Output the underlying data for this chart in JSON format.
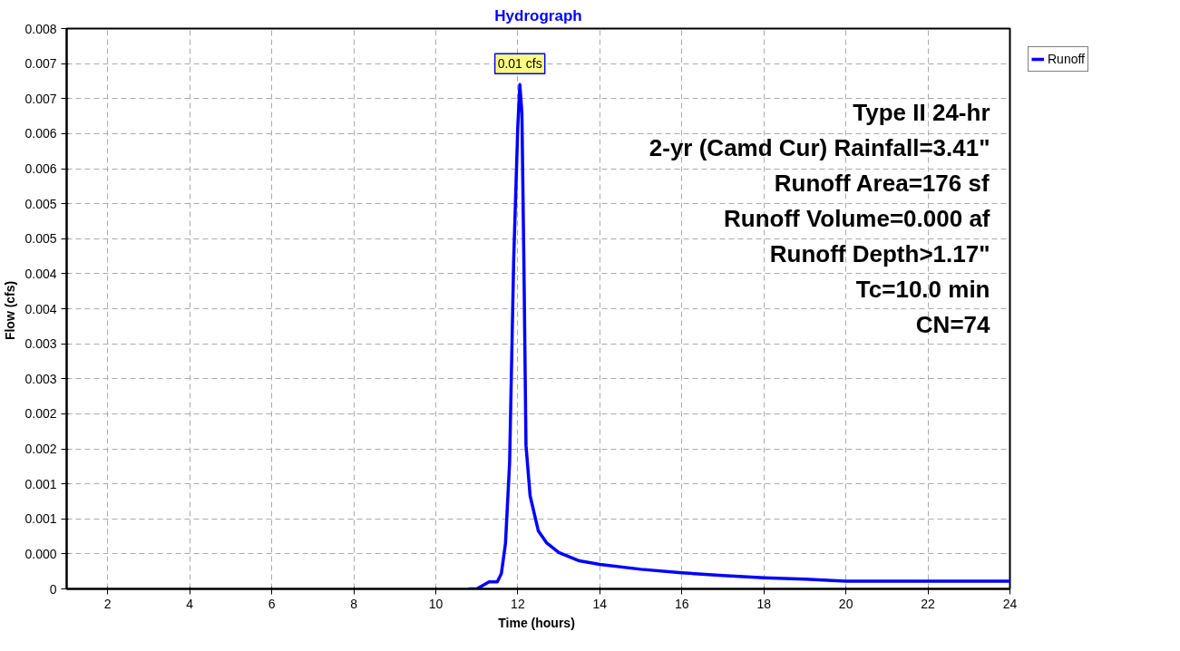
{
  "chart_data": {
    "type": "line",
    "title": "Hydrograph",
    "xlabel": "Time  (hours)",
    "ylabel": "Flow  (cfs)",
    "x": [
      10.8,
      11.0,
      11.3,
      11.5,
      11.6,
      11.7,
      11.8,
      11.9,
      12.0,
      12.05,
      12.1,
      12.15,
      12.2,
      12.3,
      12.5,
      12.7,
      13.0,
      13.5,
      14.0,
      15.0,
      16.0,
      17.0,
      18.0,
      19.0,
      20.0,
      24.0
    ],
    "series": [
      {
        "name": "Runoff",
        "color": "#0000ff",
        "values": [
          0,
          0,
          0.0001,
          0.0001,
          0.00022,
          0.00065,
          0.0018,
          0.0047,
          0.0066,
          0.0072,
          0.0068,
          0.0046,
          0.00205,
          0.00133,
          0.00083,
          0.00066,
          0.00052,
          0.0004,
          0.00035,
          0.00028,
          0.00023,
          0.00019,
          0.00016,
          0.00014,
          0.00011,
          0.00011
        ]
      }
    ],
    "xlim": [
      1,
      24
    ],
    "ylim": [
      0,
      0.008
    ],
    "xticks": [
      2,
      4,
      6,
      8,
      10,
      12,
      14,
      16,
      18,
      20,
      22,
      24
    ],
    "yticks": [
      {
        "value": 0,
        "label": "0"
      },
      {
        "value": 0.0005,
        "label": "0.000"
      },
      {
        "value": 0.001,
        "label": "0.001"
      },
      {
        "value": 0.0015,
        "label": "0.001"
      },
      {
        "value": 0.002,
        "label": "0.002"
      },
      {
        "value": 0.0025,
        "label": "0.002"
      },
      {
        "value": 0.003,
        "label": "0.003"
      },
      {
        "value": 0.0035,
        "label": "0.003"
      },
      {
        "value": 0.004,
        "label": "0.004"
      },
      {
        "value": 0.0045,
        "label": "0.004"
      },
      {
        "value": 0.005,
        "label": "0.005"
      },
      {
        "value": 0.0055,
        "label": "0.005"
      },
      {
        "value": 0.006,
        "label": "0.006"
      },
      {
        "value": 0.0065,
        "label": "0.006"
      },
      {
        "value": 0.007,
        "label": "0.007"
      },
      {
        "value": 0.0075,
        "label": "0.007"
      },
      {
        "value": 0.008,
        "label": "0.008"
      }
    ],
    "annotations": [
      {
        "text": "0.01 cfs",
        "x": 12.05,
        "y": 0.0072
      },
      "Type II 24-hr",
      "2-yr (Camd Cur) Rainfall=3.41\"",
      "Runoff Area=176 sf",
      "Runoff Volume=0.000 af",
      "Runoff Depth>1.17\"",
      "Tc=10.0 min",
      "CN=74"
    ],
    "grid": true,
    "legend": "top right",
    "line_style": "solid",
    "marker": "none"
  }
}
